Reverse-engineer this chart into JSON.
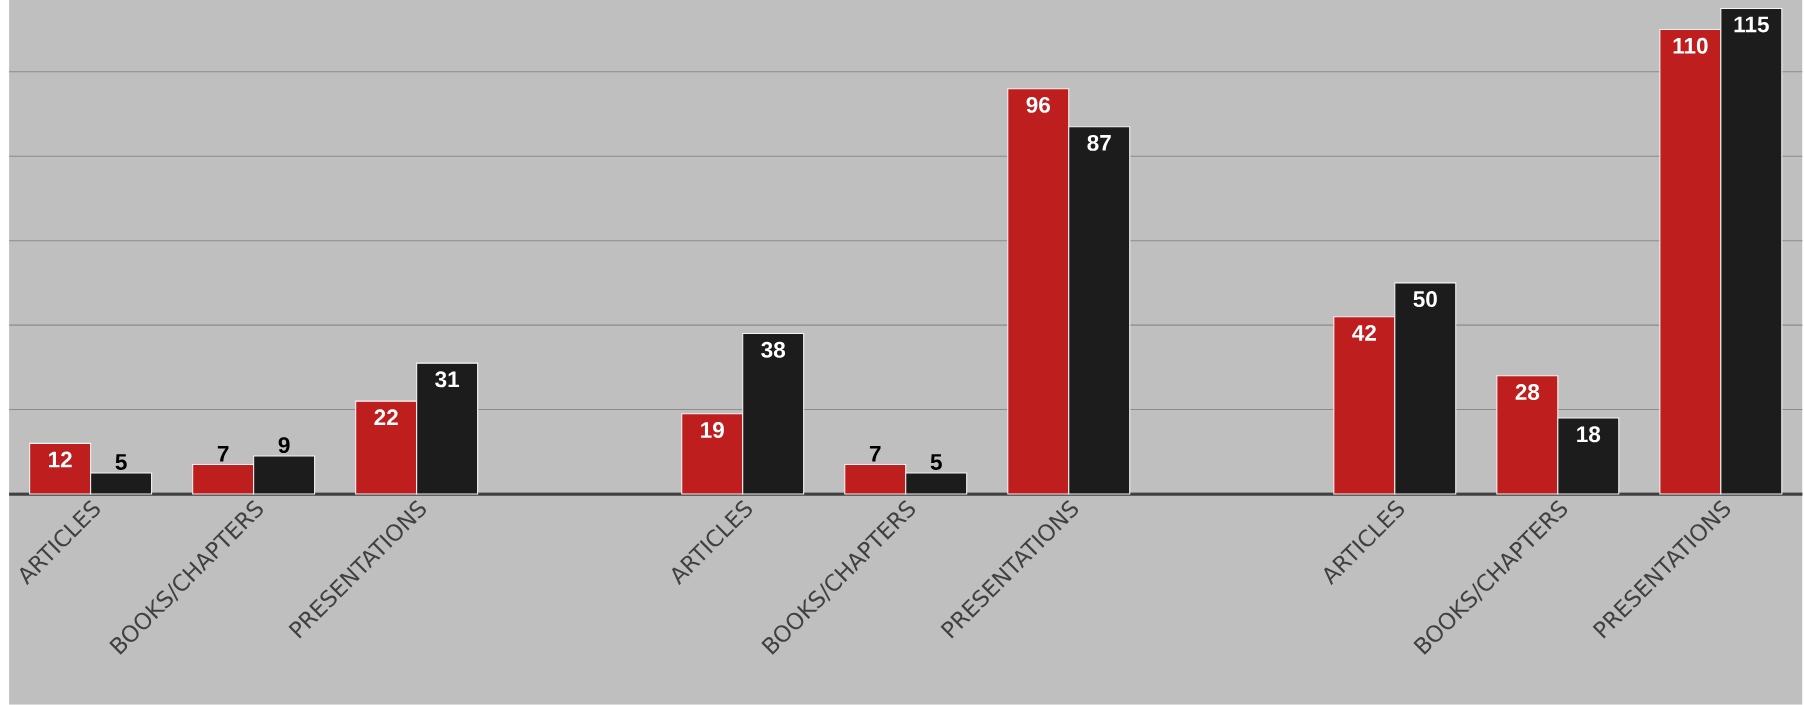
{
  "chart_data": {
    "type": "bar",
    "categories": [
      "ARTICLES",
      "BOOKS/CHAPTERS",
      "PRESENTATIONS",
      null,
      "ARTICLES",
      "BOOKS/CHAPTERS",
      "PRESENTATIONS",
      null,
      "ARTICLES",
      "BOOKS/CHAPTERS",
      "PRESENTATIONS"
    ],
    "series": [
      {
        "color": "#be1e1e",
        "values": [
          12,
          7,
          22,
          null,
          19,
          7,
          96,
          null,
          42,
          28,
          110
        ]
      },
      {
        "color": "#1c1c1c",
        "values": [
          5,
          9,
          31,
          null,
          38,
          5,
          87,
          null,
          50,
          18,
          115
        ]
      }
    ],
    "ylim": [
      0,
      117
    ],
    "yticks": [
      {
        "value": 0,
        "label": null
      },
      {
        "value": 20,
        "label": null
      },
      {
        "value": 40,
        "label": null
      },
      {
        "value": 60,
        "label": null
      },
      {
        "value": 80,
        "label": null
      },
      {
        "value": 100,
        "label": null
      }
    ],
    "grid": "y",
    "data_labels": true
  }
}
